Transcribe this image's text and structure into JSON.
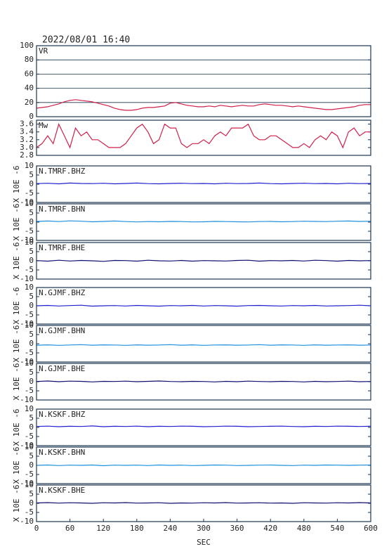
{
  "chart_data": [
    {
      "type": "line",
      "title": "2022/08/01 16:40",
      "xlim": [
        0,
        600
      ],
      "ylim": [
        0,
        100
      ],
      "yticks": [
        0,
        20,
        40,
        60,
        80,
        100
      ],
      "grid": true,
      "x": [
        0,
        10,
        20,
        30,
        40,
        50,
        60,
        70,
        80,
        90,
        100,
        110,
        120,
        130,
        140,
        150,
        160,
        170,
        180,
        190,
        200,
        210,
        220,
        230,
        240,
        250,
        260,
        270,
        280,
        290,
        300,
        310,
        320,
        330,
        340,
        350,
        360,
        370,
        380,
        390,
        400,
        410,
        420,
        430,
        440,
        450,
        460,
        470,
        480,
        490,
        500,
        510,
        520,
        530,
        540,
        550,
        560,
        570,
        580,
        590,
        600
      ],
      "series": [
        {
          "name": "VR",
          "color": "#d0204a",
          "values": [
            12,
            13,
            14,
            16,
            18,
            21,
            23,
            24,
            23,
            22,
            21,
            19,
            17,
            15,
            12,
            10,
            9,
            9,
            10,
            12,
            13,
            13,
            14,
            15,
            19,
            20,
            18,
            16,
            15,
            14,
            14,
            15,
            14,
            16,
            15,
            14,
            15,
            16,
            15,
            15,
            17,
            18,
            17,
            16,
            16,
            15,
            14,
            15,
            14,
            13,
            12,
            11,
            10,
            10,
            11,
            12,
            13,
            14,
            16,
            17,
            17
          ]
        }
      ]
    },
    {
      "type": "line",
      "xlim": [
        0,
        600
      ],
      "ylim": [
        2.8,
        3.7
      ],
      "yticks": [
        2.8,
        {
          "value": 3,
          "label": "3.0"
        },
        3.2,
        3.4,
        3.6
      ],
      "grid": false,
      "x": [
        0,
        10,
        20,
        30,
        40,
        50,
        60,
        70,
        80,
        90,
        100,
        110,
        120,
        130,
        140,
        150,
        160,
        170,
        180,
        190,
        200,
        210,
        220,
        230,
        240,
        250,
        260,
        270,
        280,
        290,
        300,
        310,
        320,
        330,
        340,
        350,
        360,
        370,
        380,
        390,
        400,
        410,
        420,
        430,
        440,
        450,
        460,
        470,
        480,
        490,
        500,
        510,
        520,
        530,
        540,
        550,
        560,
        570,
        580,
        590,
        600
      ],
      "series": [
        {
          "name": "Mw",
          "color": "#d0204a",
          "values": [
            3.0,
            3.1,
            3.3,
            3.1,
            3.6,
            3.3,
            3.0,
            3.5,
            3.3,
            3.4,
            3.2,
            3.2,
            3.1,
            3.0,
            3.0,
            3.0,
            3.1,
            3.3,
            3.5,
            3.6,
            3.4,
            3.1,
            3.2,
            3.6,
            3.5,
            3.5,
            3.1,
            3.0,
            3.1,
            3.1,
            3.2,
            3.1,
            3.3,
            3.4,
            3.3,
            3.5,
            3.5,
            3.5,
            3.6,
            3.3,
            3.2,
            3.2,
            3.3,
            3.3,
            3.2,
            3.1,
            3.0,
            3.0,
            3.1,
            3.0,
            3.2,
            3.3,
            3.2,
            3.4,
            3.3,
            3.0,
            3.4,
            3.5,
            3.3,
            3.4,
            3.4
          ]
        }
      ]
    },
    {
      "type": "line",
      "ylabel": "X 10E -6",
      "xlim": [
        0,
        600
      ],
      "ylim": [
        -10,
        10
      ],
      "yticks": [
        -10,
        -5,
        0,
        5,
        10
      ],
      "x": [
        0,
        20,
        40,
        60,
        80,
        100,
        120,
        140,
        160,
        180,
        200,
        220,
        240,
        260,
        280,
        300,
        320,
        340,
        360,
        380,
        400,
        420,
        440,
        460,
        480,
        500,
        520,
        540,
        560,
        580,
        600
      ],
      "series": [
        {
          "name": "N.TMRF.BHZ",
          "color": "#2020d0",
          "values": [
            0.3,
            0.5,
            0.2,
            0.6,
            0.4,
            0.3,
            0.5,
            0.2,
            0.4,
            0.6,
            0.3,
            0.2,
            0.4,
            0.5,
            0.3,
            0.4,
            0.2,
            0.5,
            0.3,
            0.4,
            0.6,
            0.3,
            0.2,
            0.4,
            0.5,
            0.3,
            0.4,
            0.2,
            0.5,
            0.3,
            0.4
          ]
        }
      ]
    },
    {
      "type": "line",
      "ylabel": "X 10E -6",
      "xlim": [
        0,
        600
      ],
      "ylim": [
        -10,
        10
      ],
      "yticks": [
        -10,
        -5,
        0,
        5,
        10
      ],
      "x": [
        0,
        20,
        40,
        60,
        80,
        100,
        120,
        140,
        160,
        180,
        200,
        220,
        240,
        260,
        280,
        300,
        320,
        340,
        360,
        380,
        400,
        420,
        440,
        460,
        480,
        500,
        520,
        540,
        560,
        580,
        600
      ],
      "series": [
        {
          "name": "N.TMRF.BHN",
          "color": "#2090e0",
          "values": [
            0.4,
            0.6,
            0.3,
            0.7,
            0.5,
            0.2,
            0.4,
            0.6,
            0.3,
            0.1,
            0.3,
            0.2,
            0.4,
            0.3,
            0.1,
            0.2,
            0.4,
            0.3,
            0.2,
            0.1,
            0.3,
            0.4,
            0.2,
            0.3,
            0.5,
            0.4,
            0.3,
            0.5,
            0.6,
            0.4,
            0.5
          ]
        }
      ]
    },
    {
      "type": "line",
      "ylabel": "X 10E -6",
      "xlim": [
        0,
        600
      ],
      "ylim": [
        -10,
        10
      ],
      "yticks": [
        -10,
        -5,
        0,
        5,
        10
      ],
      "x": [
        0,
        20,
        40,
        60,
        80,
        100,
        120,
        140,
        160,
        180,
        200,
        220,
        240,
        260,
        280,
        300,
        320,
        340,
        360,
        380,
        400,
        420,
        440,
        460,
        480,
        500,
        520,
        540,
        560,
        580,
        600
      ],
      "series": [
        {
          "name": "N.TMRF.BHE",
          "color": "#101070",
          "values": [
            0.1,
            -0.2,
            0.3,
            -0.1,
            0.2,
            0.0,
            -0.3,
            0.2,
            0.1,
            -0.2,
            0.3,
            0.0,
            -0.1,
            0.2,
            -0.2,
            0.1,
            0.0,
            -0.1,
            0.2,
            0.3,
            -0.2,
            0.1,
            0.0,
            0.2,
            -0.1,
            0.3,
            0.1,
            -0.2,
            0.2,
            0.0,
            0.1
          ]
        }
      ]
    },
    {
      "type": "line",
      "ylabel": "X 10E -6",
      "xlim": [
        0,
        600
      ],
      "ylim": [
        -10,
        10
      ],
      "yticks": [
        -10,
        -5,
        0,
        5,
        10
      ],
      "x": [
        0,
        20,
        40,
        60,
        80,
        100,
        120,
        140,
        160,
        180,
        200,
        220,
        240,
        260,
        280,
        300,
        320,
        340,
        360,
        380,
        400,
        420,
        440,
        460,
        480,
        500,
        520,
        540,
        560,
        580,
        600
      ],
      "series": [
        {
          "name": "N.GJMF.BHZ",
          "color": "#2020d0",
          "values": [
            0.0,
            0.2,
            -0.1,
            0.1,
            0.3,
            -0.2,
            0.0,
            0.1,
            -0.1,
            0.2,
            0.0,
            -0.2,
            0.1,
            0.0,
            0.2,
            -0.1,
            0.1,
            0.0,
            -0.2,
            0.1,
            0.2,
            0.0,
            -0.1,
            0.1,
            0.0,
            0.2,
            -0.1,
            0.0,
            0.1,
            0.3,
            0.0
          ]
        }
      ]
    },
    {
      "type": "line",
      "ylabel": "X 10E -6",
      "xlim": [
        0,
        600
      ],
      "ylim": [
        -10,
        10
      ],
      "yticks": [
        -10,
        -5,
        0,
        5,
        10
      ],
      "x": [
        0,
        20,
        40,
        60,
        80,
        100,
        120,
        140,
        160,
        180,
        200,
        220,
        240,
        260,
        280,
        300,
        320,
        340,
        360,
        380,
        400,
        420,
        440,
        460,
        480,
        500,
        520,
        540,
        560,
        580,
        600
      ],
      "series": [
        {
          "name": "N.GJMF.BHN",
          "color": "#2090e0",
          "values": [
            -0.8,
            -0.6,
            -0.9,
            -0.7,
            -0.5,
            -0.8,
            -0.6,
            -0.7,
            -0.9,
            -0.6,
            -0.8,
            -0.7,
            -0.5,
            -0.8,
            -0.6,
            -0.9,
            -0.7,
            -0.6,
            -0.8,
            -0.7,
            -0.5,
            -0.8,
            -0.6,
            -0.7,
            -0.9,
            -0.6,
            -0.8,
            -0.7,
            -0.6,
            -0.8,
            -0.7
          ]
        }
      ]
    },
    {
      "type": "line",
      "ylabel": "X 10E -6",
      "xlim": [
        0,
        600
      ],
      "ylim": [
        -10,
        10
      ],
      "yticks": [
        -10,
        -5,
        0,
        5,
        10
      ],
      "x": [
        0,
        20,
        40,
        60,
        80,
        100,
        120,
        140,
        160,
        180,
        200,
        220,
        240,
        260,
        280,
        300,
        320,
        340,
        360,
        380,
        400,
        420,
        440,
        460,
        480,
        500,
        520,
        540,
        560,
        580,
        600
      ],
      "series": [
        {
          "name": "N.GJMF.BHE",
          "color": "#101070",
          "values": [
            0.1,
            0.4,
            0.0,
            0.3,
            0.2,
            -0.1,
            0.2,
            0.1,
            0.3,
            0.0,
            0.2,
            0.4,
            0.1,
            0.0,
            0.2,
            0.1,
            -0.1,
            0.2,
            0.0,
            0.3,
            0.1,
            0.0,
            0.2,
            0.1,
            -0.1,
            0.2,
            0.0,
            0.1,
            0.3,
            0.0,
            0.1
          ]
        }
      ]
    },
    {
      "type": "line",
      "ylabel": "X 10E -6",
      "xlim": [
        0,
        600
      ],
      "ylim": [
        -10,
        10
      ],
      "yticks": [
        -10,
        -5,
        0,
        5,
        10
      ],
      "x": [
        0,
        20,
        40,
        60,
        80,
        100,
        120,
        140,
        160,
        180,
        200,
        220,
        240,
        260,
        280,
        300,
        320,
        340,
        360,
        380,
        400,
        420,
        440,
        460,
        480,
        500,
        520,
        540,
        560,
        580,
        600
      ],
      "series": [
        {
          "name": "N.KSKF.BHZ",
          "color": "#2020d0",
          "values": [
            0.5,
            0.7,
            0.4,
            0.6,
            0.5,
            0.8,
            0.4,
            0.6,
            0.5,
            0.7,
            0.4,
            0.6,
            0.5,
            0.7,
            0.6,
            0.4,
            0.5,
            0.7,
            0.6,
            0.4,
            0.5,
            0.6,
            0.7,
            0.5,
            0.4,
            0.6,
            0.5,
            0.7,
            0.6,
            0.5,
            0.6
          ]
        }
      ]
    },
    {
      "type": "line",
      "ylabel": "X 10E -6",
      "xlim": [
        0,
        600
      ],
      "ylim": [
        -10,
        10
      ],
      "yticks": [
        -10,
        -5,
        0,
        5,
        10
      ],
      "x": [
        0,
        20,
        40,
        60,
        80,
        100,
        120,
        140,
        160,
        180,
        200,
        220,
        240,
        260,
        280,
        300,
        320,
        340,
        360,
        380,
        400,
        420,
        440,
        460,
        480,
        500,
        520,
        540,
        560,
        580,
        600
      ],
      "series": [
        {
          "name": "N.KSKF.BHN",
          "color": "#2090e0",
          "values": [
            0.0,
            0.2,
            -0.1,
            0.1,
            0.0,
            0.2,
            -0.2,
            0.1,
            0.0,
            0.1,
            -0.1,
            0.2,
            0.0,
            0.1,
            -0.1,
            0.0,
            0.2,
            0.1,
            -0.1,
            0.0,
            0.1,
            0.2,
            0.0,
            -0.1,
            0.1,
            0.0,
            0.2,
            0.1,
            0.0,
            0.1,
            0.2
          ]
        }
      ]
    },
    {
      "type": "line",
      "ylabel": "X 10E -6",
      "xlabel": "SEC",
      "xlim": [
        0,
        600
      ],
      "xticks": [
        0,
        60,
        120,
        180,
        240,
        300,
        360,
        420,
        480,
        540,
        600
      ],
      "ylim": [
        -10,
        10
      ],
      "yticks": [
        -10,
        -5,
        0,
        5,
        10
      ],
      "x": [
        0,
        20,
        40,
        60,
        80,
        100,
        120,
        140,
        160,
        180,
        200,
        220,
        240,
        260,
        280,
        300,
        320,
        340,
        360,
        380,
        400,
        420,
        440,
        460,
        480,
        500,
        520,
        540,
        560,
        580,
        600
      ],
      "series": [
        {
          "name": "N.KSKF.BHE",
          "color": "#101070",
          "values": [
            0.2,
            0.4,
            0.1,
            0.3,
            0.2,
            0.0,
            0.3,
            0.2,
            0.4,
            0.1,
            0.2,
            0.3,
            0.0,
            0.2,
            0.1,
            0.3,
            0.2,
            0.4,
            0.1,
            0.2,
            0.3,
            0.1,
            0.2,
            0.0,
            0.3,
            0.2,
            0.1,
            0.3,
            0.2,
            0.4,
            0.2
          ]
        }
      ]
    }
  ]
}
